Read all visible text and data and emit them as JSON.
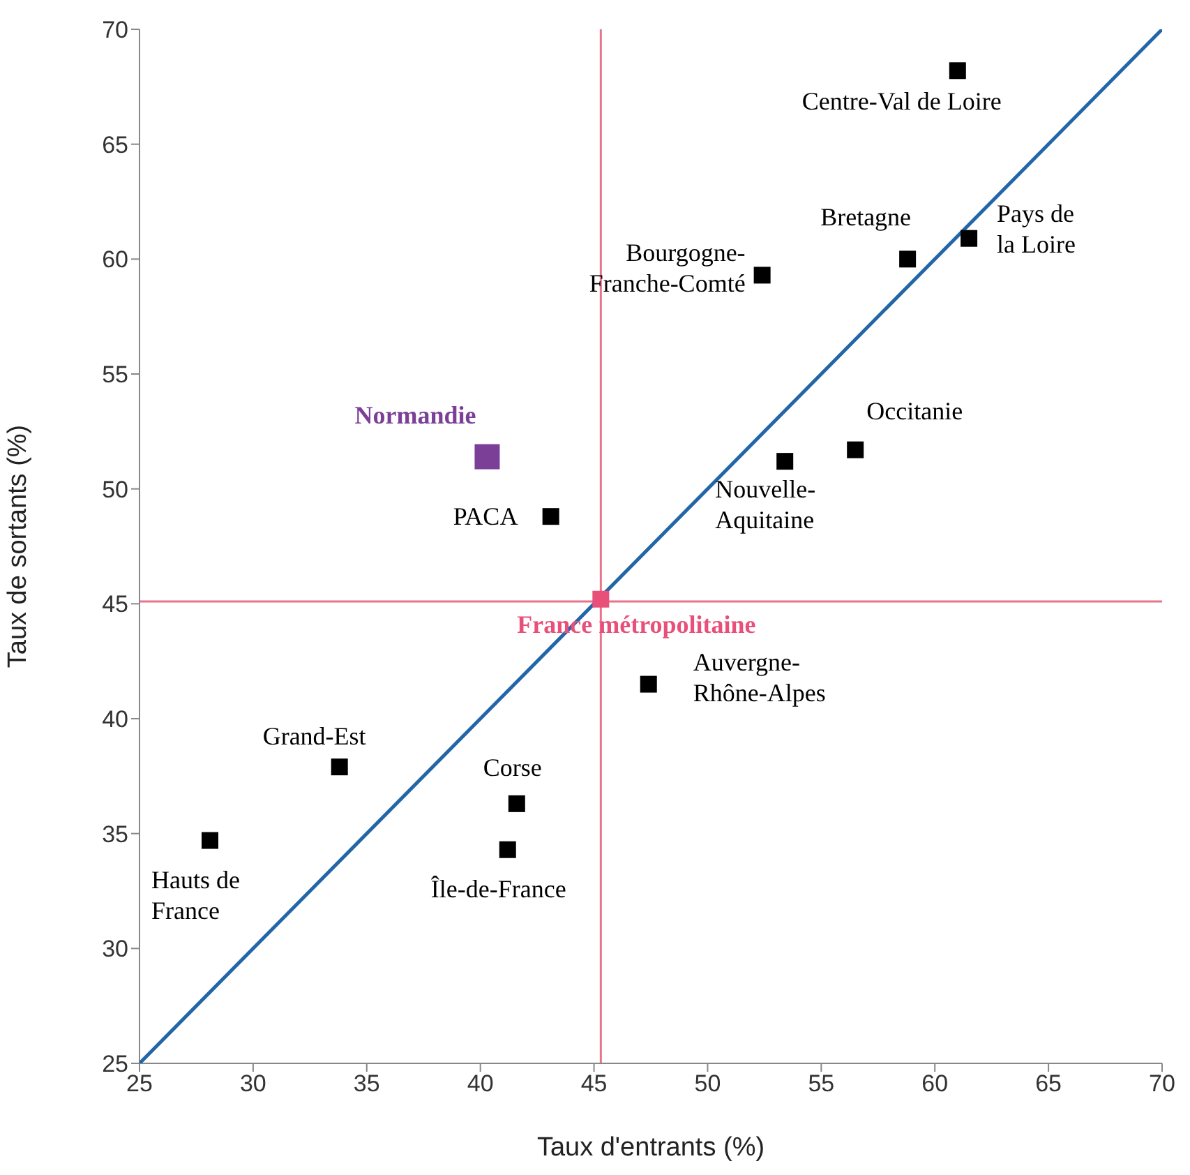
{
  "chart_data": {
    "type": "scatter",
    "xlabel": "Taux d'entrants (%)",
    "ylabel": "Taux de sortants (%)",
    "xlim": [
      25,
      70
    ],
    "xticks": [
      25,
      30,
      35,
      40,
      45,
      50,
      55,
      60,
      65,
      70
    ],
    "ylim": [
      25,
      70
    ],
    "yticks": [
      25,
      30,
      35,
      40,
      45,
      50,
      55,
      60,
      65,
      70
    ],
    "grid": false,
    "legend": false,
    "marker": "square",
    "ref_lines": [
      {
        "axis": "x",
        "value": 45.3,
        "color": "#e8738a"
      },
      {
        "axis": "y",
        "value": 45.1,
        "color": "#e8738a"
      }
    ],
    "series": [
      {
        "type": "line",
        "color": "#2266a8",
        "x": [
          25,
          70
        ],
        "values": [
          25,
          70
        ],
        "marker": "none"
      },
      {
        "name": "Centre-Val de Loire",
        "color": "#000000",
        "x": [
          61.0
        ],
        "values": [
          68.2
        ]
      },
      {
        "name": "Pays de la Loire",
        "color": "#000000",
        "x": [
          61.5
        ],
        "values": [
          60.9
        ]
      },
      {
        "name": "Bretagne",
        "color": "#000000",
        "x": [
          58.8
        ],
        "values": [
          60.0
        ]
      },
      {
        "name": "Bourgogne-Franche-Comté",
        "color": "#000000",
        "x": [
          52.4
        ],
        "values": [
          59.3
        ]
      },
      {
        "name": "Occitanie",
        "color": "#000000",
        "x": [
          56.5
        ],
        "values": [
          51.7
        ]
      },
      {
        "name": "Nouvelle-Aquitaine",
        "color": "#000000",
        "x": [
          53.4
        ],
        "values": [
          51.2
        ]
      },
      {
        "name": "Normandie",
        "color": "#7b3f98",
        "x": [
          40.3
        ],
        "values": [
          51.4
        ]
      },
      {
        "name": "PACA",
        "color": "#000000",
        "x": [
          43.1
        ],
        "values": [
          48.8
        ]
      },
      {
        "name": "France métropolitaine",
        "color": "#e8507a",
        "x": [
          45.3
        ],
        "values": [
          45.2
        ]
      },
      {
        "name": "Auvergne-Rhône-Alpes",
        "color": "#000000",
        "x": [
          47.4
        ],
        "values": [
          41.5
        ]
      },
      {
        "name": "Grand-Est",
        "color": "#000000",
        "x": [
          33.8
        ],
        "values": [
          37.9
        ]
      },
      {
        "name": "Corse",
        "color": "#000000",
        "x": [
          41.6
        ],
        "values": [
          36.3
        ]
      },
      {
        "name": "Île-de-France",
        "color": "#000000",
        "x": [
          41.2
        ],
        "values": [
          34.3
        ]
      },
      {
        "name": "Hauts de France",
        "color": "#000000",
        "x": [
          28.1
        ],
        "values": [
          34.7
        ]
      }
    ]
  }
}
